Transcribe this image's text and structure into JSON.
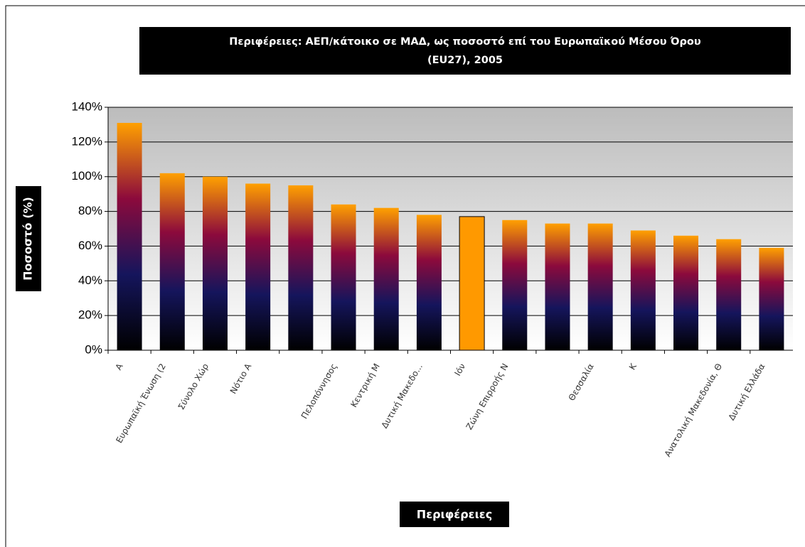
{
  "chart_data": {
    "type": "bar",
    "title": [
      "Περιφέρειες: ΑΕΠ/κάτοικο σε ΜΑΔ, ως ποσοστό επί του Ευρωπαϊκού Μέσου Όρου",
      "(EU27), 2005"
    ],
    "x_label": "Περιφέρειες",
    "y_label": "Ποσοστό (%)",
    "categories": [
      "Α",
      "Ευρωπαϊκή Ένωση (2",
      "Σύνολο Χώρ",
      "Νότιο Α",
      null,
      "Πελοπόννησος",
      "Κεντρική Μ",
      "Δυτική Μακεδο...",
      "Ιόν",
      "Ζώνη Επιρροής Ν",
      null,
      "Θεσσαλία",
      "Κ",
      null,
      "Ανατολική Μακεδονία, Θ",
      "Δυτική Ελλάδα"
    ],
    "values": [
      131,
      102,
      100,
      96,
      95,
      84,
      82,
      78,
      77,
      75,
      73,
      73,
      69,
      66,
      64,
      59
    ],
    "gradient": [
      "#000000",
      "#15155c",
      "#8c0a3c",
      "#ffa000"
    ],
    "colors": [
      "gradient",
      "gradient",
      "gradient",
      "gradient",
      "gradient",
      "gradient",
      "gradient",
      "gradient",
      "#ff9900",
      "gradient",
      "gradient",
      "gradient",
      "gradient",
      "gradient",
      "gradient",
      "gradient"
    ],
    "ylim": [
      0,
      140
    ],
    "yticks": [
      {
        "value": 0,
        "label": "0%"
      },
      {
        "value": 20,
        "label": "20%"
      },
      {
        "value": 40,
        "label": "40%"
      },
      {
        "value": 60,
        "label": "60%"
      },
      {
        "value": 80,
        "label": "80%"
      },
      {
        "value": 100,
        "label": "100%"
      },
      {
        "value": 120,
        "label": "120%"
      },
      {
        "value": 140,
        "label": "140%"
      }
    ],
    "grid": true
  }
}
